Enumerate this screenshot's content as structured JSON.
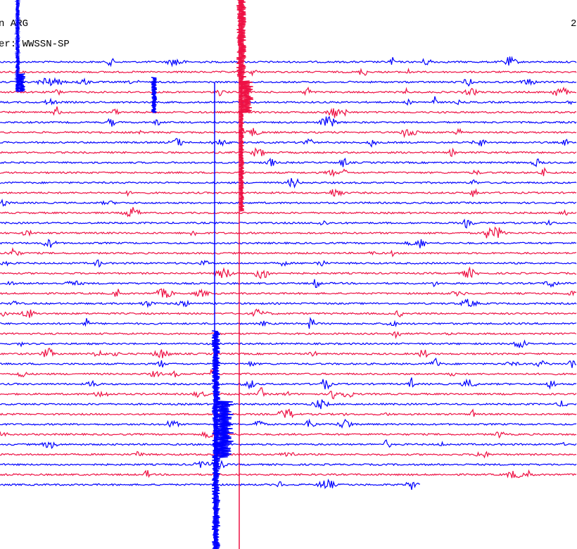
{
  "header": {
    "station": "n ARG",
    "filter": "er: WWSSN-SP",
    "date": "2"
  }
}
